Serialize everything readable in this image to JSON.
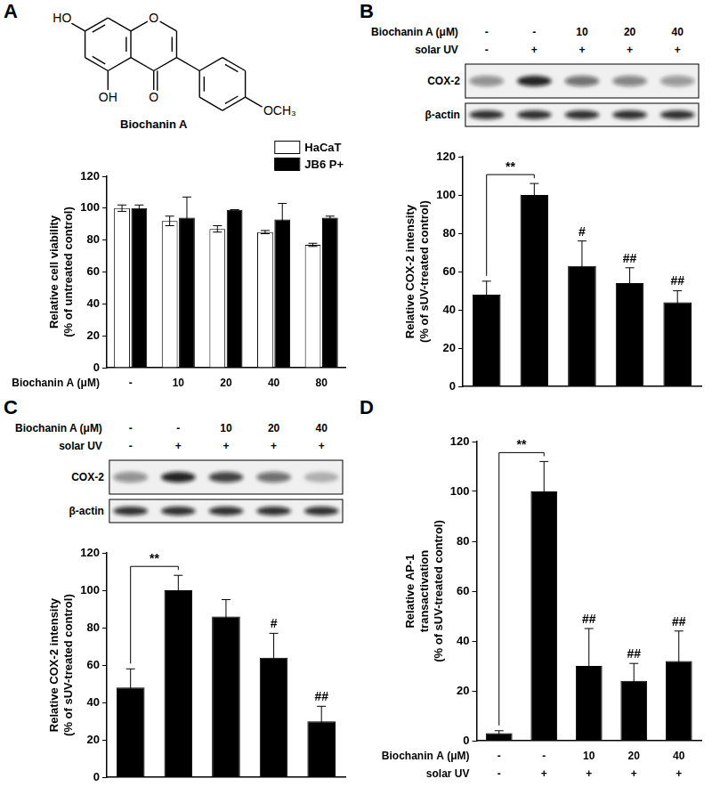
{
  "figure": {
    "structure": {
      "name": "Biochanin A",
      "labels": {
        "hydroxy_7": "HO",
        "hydroxy_5": "OH",
        "ring_oxygen": "O",
        "carbonyl": "O",
        "methoxy": "OCH₃"
      }
    }
  },
  "chart_data": [
    {
      "panel": "A",
      "type": "bar",
      "x_label": "Biochanin A (μM)",
      "y_label": [
        "Relative cell viability",
        "(% of untreated control)"
      ],
      "categories": [
        "-",
        "10",
        "20",
        "40",
        "80"
      ],
      "series": [
        {
          "name": "HaCaT",
          "color": "#ffffff",
          "values": [
            100,
            92,
            87,
            85,
            77
          ],
          "errors": [
            2,
            3,
            2,
            1,
            1
          ]
        },
        {
          "name": "JB6 P+",
          "color": "#000000",
          "values": [
            100,
            94,
            99,
            93,
            94
          ],
          "errors": [
            2,
            13,
            0,
            10,
            1
          ]
        }
      ],
      "ylim": [
        0,
        120
      ],
      "yticks": [
        0,
        20,
        40,
        60,
        80,
        100,
        120
      ],
      "grid": false,
      "legend": "top-right"
    },
    {
      "panel": "B",
      "type": "bar",
      "treatments": [
        {
          "label": "Biochanin A (μM)",
          "values": [
            "-",
            "-",
            "10",
            "20",
            "40"
          ]
        },
        {
          "label": "solar UV",
          "values": [
            "-",
            "+",
            "+",
            "+",
            "+"
          ]
        }
      ],
      "blot_labels": [
        "COX-2",
        "β-actin"
      ],
      "y_label": [
        "Relative COX-2 intensity",
        "(% of sUV-treated control)"
      ],
      "values": [
        48,
        100,
        63,
        54,
        44
      ],
      "errors": [
        7,
        6,
        13,
        8,
        6
      ],
      "color": "#000000",
      "significance": [
        null,
        null,
        "#",
        "##",
        "##"
      ],
      "bracket": {
        "text": "**",
        "between": [
          0,
          1
        ]
      },
      "ylim": [
        0,
        120
      ],
      "yticks": [
        0,
        20,
        40,
        60,
        80,
        100,
        120
      ],
      "grid": false
    },
    {
      "panel": "C",
      "type": "bar",
      "treatments": [
        {
          "label": "Biochanin A (μM)",
          "values": [
            "-",
            "-",
            "10",
            "20",
            "40"
          ]
        },
        {
          "label": "solar UV",
          "values": [
            "-",
            "+",
            "+",
            "+",
            "+"
          ]
        }
      ],
      "blot_labels": [
        "COX-2",
        "β-actin"
      ],
      "y_label": [
        "Relative COX-2 intensity",
        "(% of sUV-treated control)"
      ],
      "values": [
        48,
        100,
        86,
        64,
        30
      ],
      "errors": [
        10,
        8,
        9,
        13,
        8
      ],
      "color": "#000000",
      "significance": [
        null,
        null,
        null,
        "#",
        "##"
      ],
      "bracket": {
        "text": "**",
        "between": [
          0,
          1
        ]
      },
      "ylim": [
        0,
        120
      ],
      "yticks": [
        0,
        20,
        40,
        60,
        80,
        100,
        120
      ],
      "grid": false
    },
    {
      "panel": "D",
      "type": "bar",
      "treatments": [
        {
          "label": "Biochanin A (μM)",
          "values": [
            "-",
            "-",
            "10",
            "20",
            "40"
          ]
        },
        {
          "label": "solar UV",
          "values": [
            "-",
            "+",
            "+",
            "+",
            "+"
          ]
        }
      ],
      "y_label": [
        "Relative AP-1",
        "transactivation",
        "(% of sUV-treated control)"
      ],
      "values": [
        3,
        100,
        30,
        24,
        32
      ],
      "errors": [
        1,
        12,
        15,
        7,
        12
      ],
      "color": "#000000",
      "significance": [
        null,
        null,
        "##",
        "##",
        "##"
      ],
      "bracket": {
        "text": "**",
        "between": [
          0,
          1
        ]
      },
      "ylim": [
        0,
        120
      ],
      "yticks": [
        0,
        20,
        40,
        60,
        80,
        100,
        120
      ],
      "grid": false
    }
  ]
}
